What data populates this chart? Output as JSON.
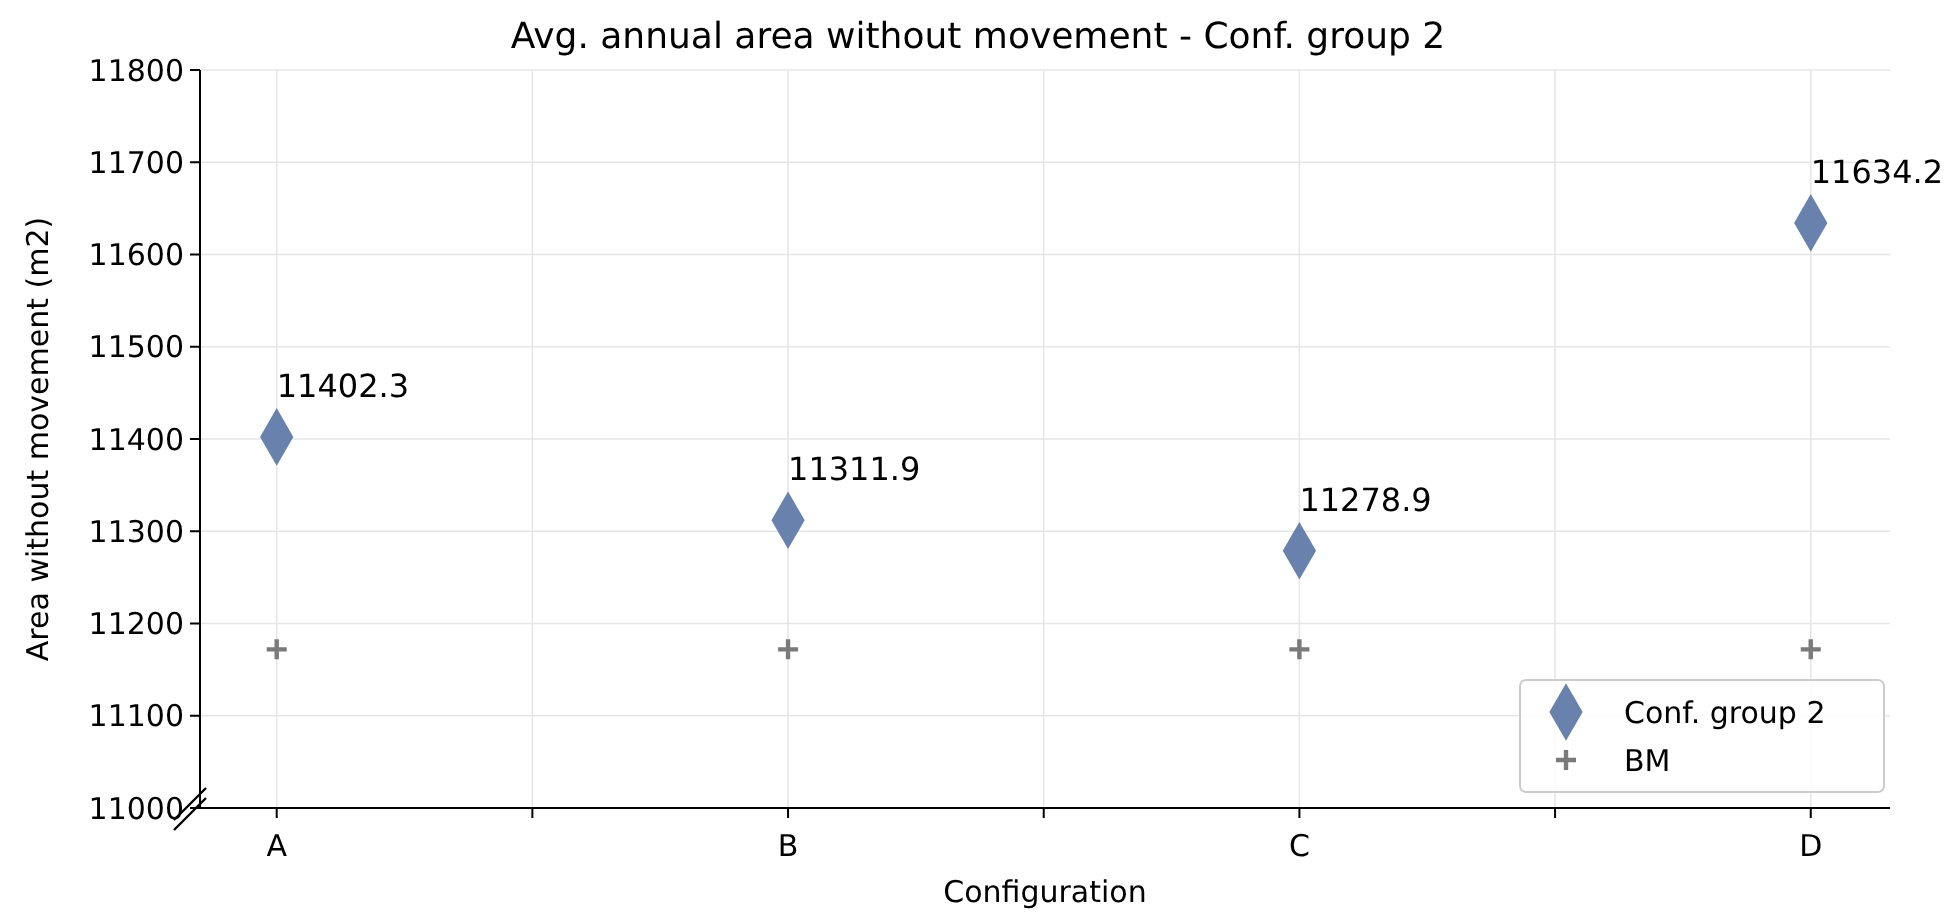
{
  "chart_data": {
    "type": "scatter",
    "title": "Avg. annual area without movement - Conf. group 2",
    "xlabel": "Configuration",
    "ylabel": "Area without movement (m2)",
    "categories": [
      "A",
      "B",
      "C",
      "D"
    ],
    "series": [
      {
        "name": "Conf. group 2",
        "color": "#6882ad",
        "marker": "diamond",
        "values": [
          11402.3,
          11311.9,
          11278.9,
          11634.2
        ],
        "value_labels": [
          "11402.3",
          "11311.9",
          "11278.9",
          "11634.2"
        ]
      },
      {
        "name": "BM",
        "color": "#7a7a7a",
        "marker": "cross",
        "values": [
          11172,
          11172,
          11172,
          11172
        ]
      }
    ],
    "ylim": [
      11000,
      11800
    ],
    "yticks": [
      11000,
      11100,
      11200,
      11300,
      11400,
      11500,
      11600,
      11700,
      11800
    ],
    "grid": true,
    "legend": "bottom right"
  }
}
